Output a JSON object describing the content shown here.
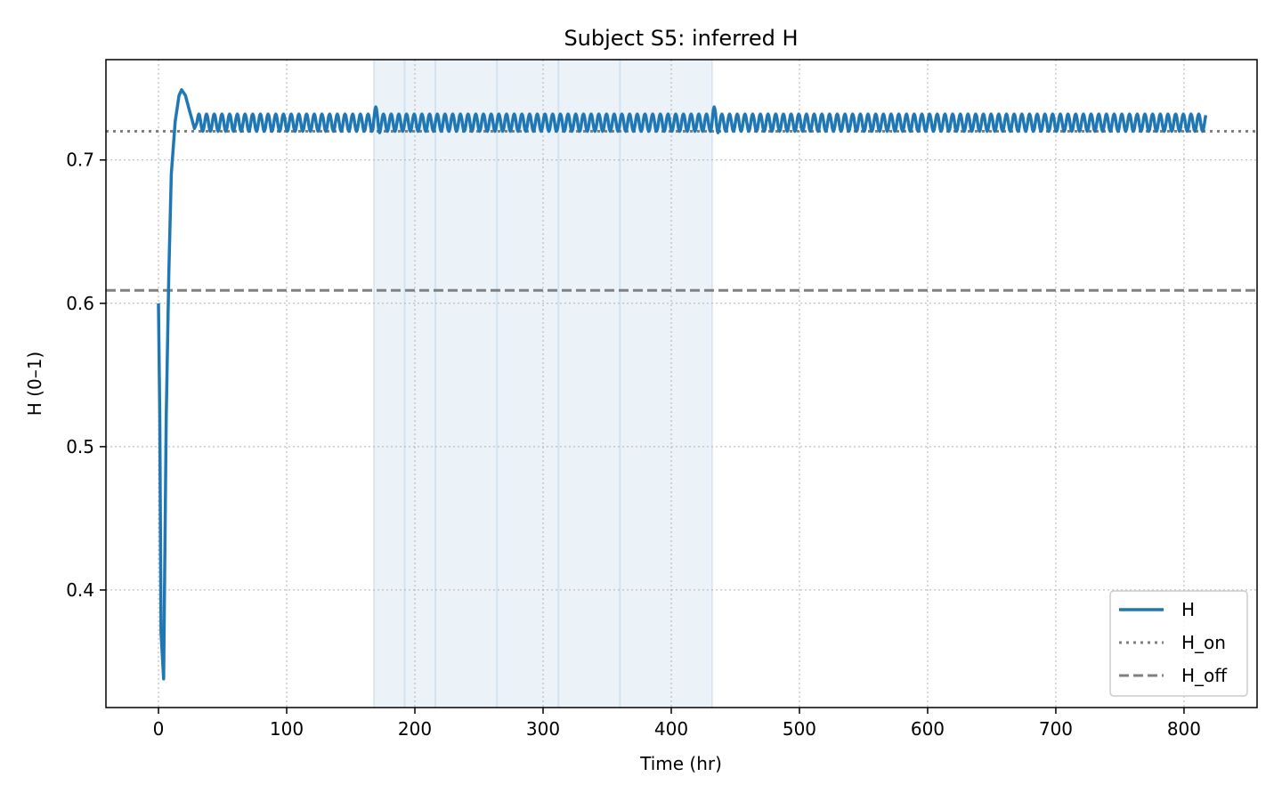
{
  "chart_data": {
    "type": "line",
    "title": "Subject S5: inferred H",
    "xlabel": "Time (hr)",
    "ylabel": "H (0–1)",
    "xlim": [
      -41,
      857
    ],
    "ylim": [
      0.318,
      0.77
    ],
    "xticks": [
      0,
      100,
      200,
      300,
      400,
      500,
      600,
      700,
      800
    ],
    "yticks": [
      0.4,
      0.5,
      0.6,
      0.7
    ],
    "ytick_labels": [
      "0.4",
      "0.5",
      "0.6",
      "0.7"
    ],
    "grid": true,
    "legend_position": "lower-right",
    "shaded_region": {
      "x_start": 168,
      "x_end": 432
    },
    "vertical_lines": [
      192,
      216,
      264,
      312,
      360
    ],
    "series": [
      {
        "name": "H",
        "color": "#1f77b4",
        "style": "solid",
        "description_points": {
          "start": [
            0,
            0.6
          ],
          "min": [
            4,
            0.338
          ],
          "peak": [
            18,
            0.749
          ],
          "settle_time": 30,
          "oscillation_center": 0.726,
          "oscillation_amplitude": 0.006,
          "oscillation_period": 6,
          "end": 817
        }
      },
      {
        "name": "H_on",
        "color": "#808080",
        "style": "dotted",
        "y": 0.72
      },
      {
        "name": "H_off",
        "color": "#808080",
        "style": "dashed",
        "y": 0.609
      }
    ]
  }
}
